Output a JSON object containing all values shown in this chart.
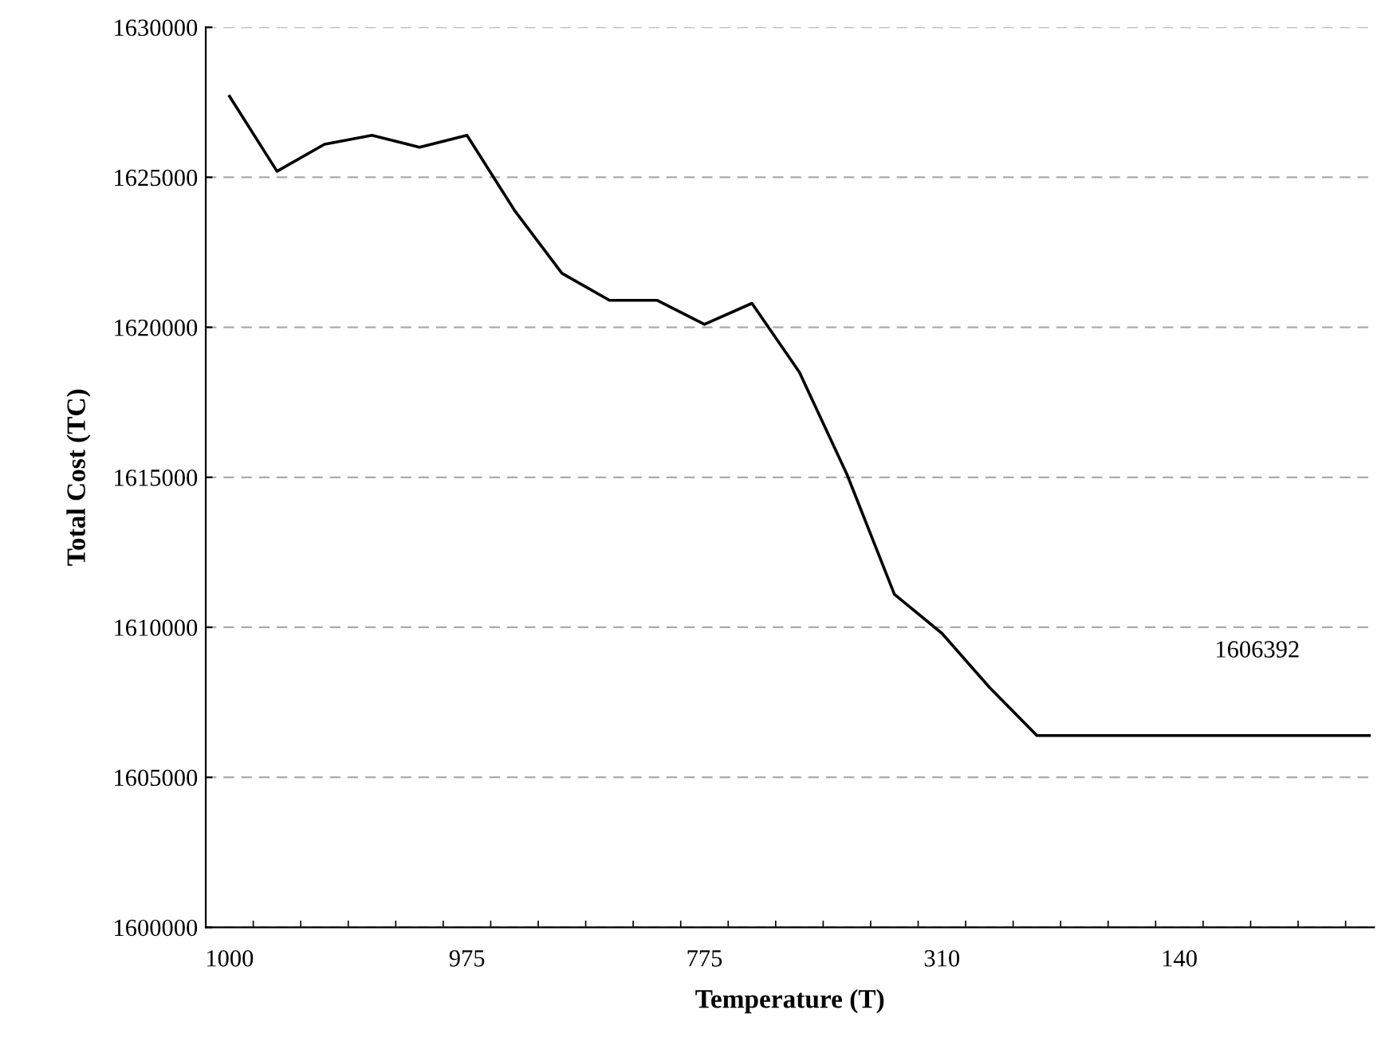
{
  "chart_data": {
    "type": "line",
    "xlabel": "Temperature (T)",
    "ylabel": "Total Cost (TC)",
    "categories": [
      "1000",
      null,
      null,
      null,
      null,
      "975",
      null,
      null,
      null,
      null,
      "775",
      null,
      null,
      null,
      null,
      "310",
      null,
      null,
      null,
      null,
      "140",
      null,
      null,
      null,
      null
    ],
    "series": [
      {
        "color": "#000000",
        "values": [
          1627700,
          1625200,
          1626100,
          1626400,
          1626000,
          1626400,
          1623900,
          1621800,
          1620900,
          1620900,
          1620100,
          1620800,
          1618500,
          1615100,
          1611100,
          1609800,
          1608000,
          1606392,
          1606392,
          1606392,
          1606392,
          1606392,
          1606392,
          1606392,
          1606392
        ]
      }
    ],
    "ylim": [
      1600000,
      1630000
    ],
    "yticks": [
      1600000,
      1605000,
      1610000,
      1615000,
      1620000,
      1625000,
      1630000
    ],
    "grid": "y",
    "legend": false,
    "marker": "none",
    "line_style": "solid",
    "annotations": [
      "1606392"
    ]
  }
}
